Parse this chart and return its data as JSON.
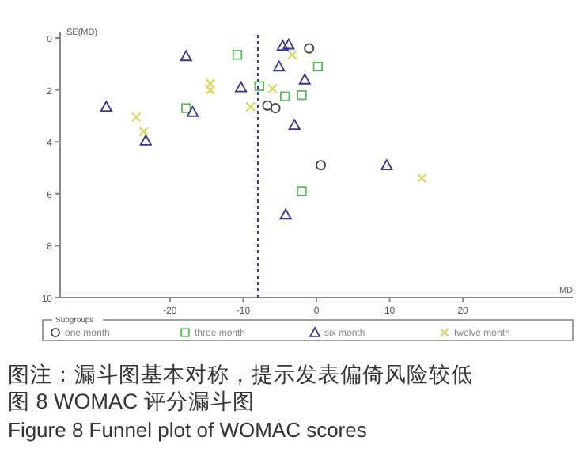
{
  "chart_data": {
    "type": "scatter",
    "xlabel": "MD",
    "ylabel": "SE(MD)",
    "legend_title": "Subgroups",
    "legend": "bottom",
    "grid": false,
    "xlim": [
      -35,
      35
    ],
    "xticks": [
      -20,
      -10,
      0,
      10,
      20
    ],
    "ylim": [
      10,
      0
    ],
    "yticks": [
      0,
      2,
      4,
      6,
      8,
      10
    ],
    "ref_lines": [
      {
        "axis": "x",
        "value": -8,
        "line_style": "dashed",
        "color": "#3333aa"
      }
    ],
    "series": [
      {
        "name": "one month",
        "color": "#444444",
        "marker": "circle",
        "x": [
          -1.0,
          -6.7,
          -5.6,
          0.6
        ],
        "values": [
          0.4,
          2.6,
          2.7,
          4.9
        ]
      },
      {
        "name": "three month",
        "color": "#55bb55",
        "marker": "square",
        "x": [
          -10.8,
          0.2,
          -7.8,
          -4.3,
          -2.0,
          -17.8,
          -2.0
        ],
        "values": [
          0.65,
          1.1,
          1.85,
          2.25,
          2.2,
          2.7,
          5.9
        ]
      },
      {
        "name": "six month",
        "color": "#333399",
        "marker": "triangle",
        "x": [
          -17.8,
          -4.6,
          -3.8,
          -5.1,
          -1.6,
          -10.3,
          -28.7,
          -16.9,
          -3.0,
          -23.3,
          9.6,
          -4.2
        ],
        "values": [
          0.7,
          0.3,
          0.25,
          1.1,
          1.6,
          1.9,
          2.65,
          2.85,
          3.35,
          3.95,
          4.9,
          6.8
        ]
      },
      {
        "name": "twelve month",
        "color": "#d8d860",
        "marker": "cross",
        "x": [
          -3.3,
          -14.5,
          -14.5,
          -6.0,
          -9.0,
          -24.6,
          -23.6,
          14.4
        ],
        "values": [
          0.65,
          1.75,
          2.0,
          1.95,
          2.65,
          3.05,
          3.6,
          5.4
        ]
      }
    ],
    "annotations": [
      "图注：漏斗图基本对称，提示发表偏倚风险较低",
      "图 8   WOMAC 评分漏斗图",
      "Figure 8   Funnel plot of WOMAC scores"
    ]
  }
}
